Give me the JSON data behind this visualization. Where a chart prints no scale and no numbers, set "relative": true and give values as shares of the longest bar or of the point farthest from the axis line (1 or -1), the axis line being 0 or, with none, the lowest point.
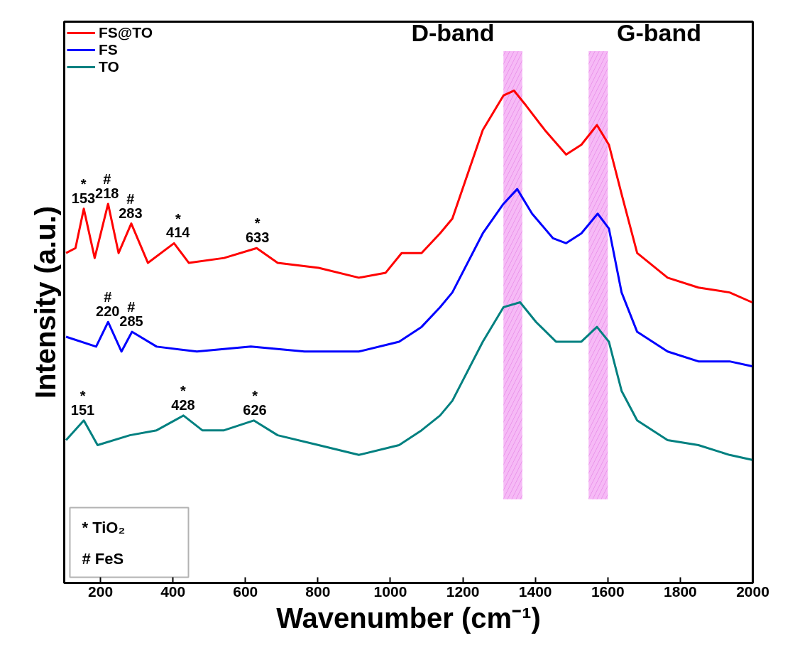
{
  "chart_data": {
    "type": "line",
    "xlabel": "Wavenumber (cm⁻¹)",
    "ylabel": "Intensity (a.u.)",
    "relative": true,
    "xlim": [
      100,
      2000
    ],
    "xticks": [
      200,
      400,
      600,
      800,
      1000,
      1200,
      1400,
      1600,
      1800,
      2000
    ],
    "grid": false,
    "legend": "top left",
    "marker": "none",
    "line_style": "solid",
    "series": [
      {
        "name": "FS@TO",
        "color": "#ff0000",
        "x": [
          105,
          131,
          154,
          184,
          221,
          250,
          285,
          331,
          403,
          444,
          541,
          631,
          689,
          802,
          913,
          987,
          1031,
          1086,
          1137,
          1171,
          1255,
          1312,
          1341,
          1374,
          1426,
          1485,
          1527,
          1570,
          1603,
          1638,
          1681,
          1765,
          1850,
          1936,
          1998
        ],
        "values": [
          0.67,
          0.68,
          0.76,
          0.66,
          0.77,
          0.67,
          0.73,
          0.65,
          0.69,
          0.65,
          0.66,
          0.68,
          0.65,
          0.64,
          0.62,
          0.63,
          0.67,
          0.67,
          0.71,
          0.74,
          0.92,
          0.99,
          1.0,
          0.97,
          0.92,
          0.87,
          0.89,
          0.93,
          0.89,
          0.79,
          0.67,
          0.62,
          0.6,
          0.59,
          0.57
        ]
      },
      {
        "name": "FS",
        "color": "#0000ff",
        "x": [
          105,
          188,
          221,
          258,
          287,
          355,
          466,
          615,
          763,
          913,
          1024,
          1086,
          1137,
          1171,
          1255,
          1312,
          1350,
          1391,
          1449,
          1485,
          1527,
          1572,
          1603,
          1638,
          1681,
          1765,
          1850,
          1936,
          1998
        ],
        "values": [
          0.5,
          0.48,
          0.53,
          0.47,
          0.51,
          0.48,
          0.47,
          0.48,
          0.47,
          0.47,
          0.49,
          0.52,
          0.56,
          0.59,
          0.71,
          0.77,
          0.8,
          0.75,
          0.7,
          0.69,
          0.71,
          0.75,
          0.72,
          0.59,
          0.51,
          0.47,
          0.45,
          0.45,
          0.44
        ]
      },
      {
        "name": "TO",
        "color": "#008080",
        "x": [
          105,
          154,
          192,
          281,
          355,
          429,
          481,
          541,
          623,
          689,
          802,
          913,
          1024,
          1086,
          1137,
          1171,
          1255,
          1312,
          1358,
          1402,
          1457,
          1527,
          1570,
          1603,
          1638,
          1681,
          1765,
          1850,
          1936,
          1998
        ],
        "values": [
          0.29,
          0.33,
          0.28,
          0.3,
          0.31,
          0.34,
          0.31,
          0.31,
          0.33,
          0.3,
          0.28,
          0.26,
          0.28,
          0.31,
          0.34,
          0.37,
          0.49,
          0.56,
          0.57,
          0.53,
          0.49,
          0.49,
          0.52,
          0.49,
          0.39,
          0.33,
          0.29,
          0.28,
          0.26,
          0.25
        ]
      }
    ],
    "bands": [
      {
        "axis": "x",
        "from": 1312,
        "to": 1364,
        "label": "D-band",
        "color": "#f08cf0"
      },
      {
        "axis": "x",
        "from": 1547,
        "to": 1600,
        "label": "G-band",
        "color": "#f08cf0"
      }
    ],
    "annotations": [
      {
        "text": "*\n153",
        "x": 153,
        "y": 0.76
      },
      {
        "text": "#\n218",
        "x": 218,
        "y": 0.77
      },
      {
        "text": "#\n283",
        "x": 283,
        "y": 0.73
      },
      {
        "text": "*\n414",
        "x": 414,
        "y": 0.69
      },
      {
        "text": "*\n633",
        "x": 633,
        "y": 0.68
      },
      {
        "text": "#\n220",
        "x": 220,
        "y": 0.53
      },
      {
        "text": "#\n285",
        "x": 285,
        "y": 0.51
      },
      {
        "text": "*\n151",
        "x": 151,
        "y": 0.33
      },
      {
        "text": "*\n428",
        "x": 428,
        "y": 0.34
      },
      {
        "text": "*\n626",
        "x": 626,
        "y": 0.33
      },
      "*   TiO₂",
      "#   FeS"
    ]
  }
}
